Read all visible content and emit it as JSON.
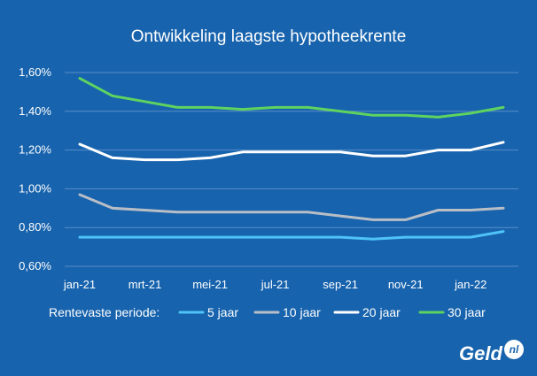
{
  "chart_data": {
    "type": "line",
    "title": "Ontwikkeling laagste hypotheekrente",
    "x": [
      "jan-21",
      "feb-21",
      "mrt-21",
      "apr-21",
      "mei-21",
      "jun-21",
      "jul-21",
      "aug-21",
      "sep-21",
      "okt-21",
      "nov-21",
      "dec-21",
      "jan-22",
      "feb-22"
    ],
    "x_tick_labels": [
      "jan-21",
      "mrt-21",
      "mei-21",
      "jul-21",
      "sep-21",
      "nov-21",
      "jan-22"
    ],
    "y_tick_labels": [
      "0,60%",
      "0,80%",
      "1,00%",
      "1,20%",
      "1,40%",
      "1,60%"
    ],
    "ylim": [
      0.6,
      1.6
    ],
    "y_ticks": [
      0.6,
      0.8,
      1.0,
      1.2,
      1.4,
      1.6
    ],
    "grid": true,
    "legend_title": "Rentevaste periode:",
    "legend_position": "bottom",
    "series": [
      {
        "name": "5 jaar",
        "color": "#4fc3f7",
        "values": [
          0.75,
          0.75,
          0.75,
          0.75,
          0.75,
          0.75,
          0.75,
          0.75,
          0.75,
          0.74,
          0.75,
          0.75,
          0.75,
          0.78
        ]
      },
      {
        "name": "10 jaar",
        "color": "#b9bec6",
        "values": [
          0.97,
          0.9,
          0.89,
          0.88,
          0.88,
          0.88,
          0.88,
          0.88,
          0.86,
          0.84,
          0.84,
          0.89,
          0.89,
          0.9
        ]
      },
      {
        "name": "20 jaar",
        "color": "#ffffff",
        "values": [
          1.23,
          1.16,
          1.15,
          1.15,
          1.16,
          1.19,
          1.19,
          1.19,
          1.19,
          1.17,
          1.17,
          1.2,
          1.2,
          1.24
        ]
      },
      {
        "name": "30 jaar",
        "color": "#5fd35f",
        "values": [
          1.57,
          1.48,
          1.45,
          1.42,
          1.42,
          1.41,
          1.42,
          1.42,
          1.4,
          1.38,
          1.38,
          1.37,
          1.39,
          1.42
        ]
      }
    ]
  },
  "logo": {
    "text": "Geld",
    "badge": "nl"
  }
}
